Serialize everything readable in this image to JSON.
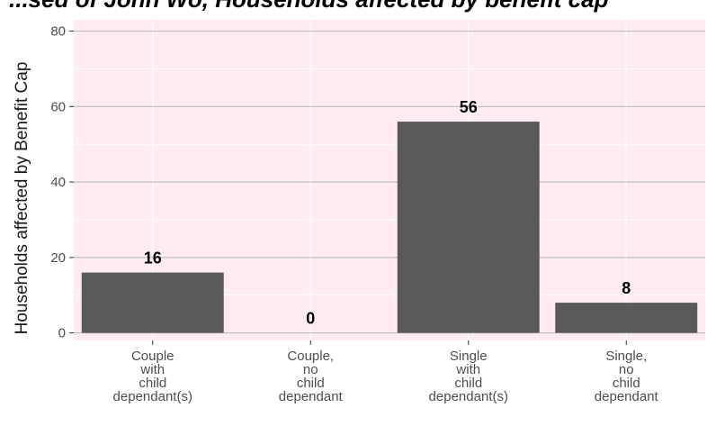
{
  "chart_data": {
    "type": "bar",
    "title": "...sed of John Wo, Households affected by benefit cap",
    "xlabel": "",
    "ylabel": "Households affected by Benefit Cap",
    "categories": [
      [
        "Couple",
        "with",
        "child",
        "dependant(s)"
      ],
      [
        "Couple,",
        "no",
        "child",
        "dependant"
      ],
      [
        "Single",
        "with",
        "child",
        "dependant(s)"
      ],
      [
        "Single,",
        "no",
        "child",
        "dependant"
      ]
    ],
    "values": [
      16,
      0,
      56,
      8
    ],
    "data_labels": [
      "16",
      "0",
      "56",
      "8"
    ],
    "ylim": [
      -2,
      83
    ],
    "yticks": [
      0,
      20,
      40,
      60,
      80
    ],
    "grid": true,
    "colors": {
      "panel": "#FFEBF0",
      "bar": "#595959",
      "grid_major": "#BFBFBF",
      "grid_minor": "#FFFFFF"
    }
  }
}
